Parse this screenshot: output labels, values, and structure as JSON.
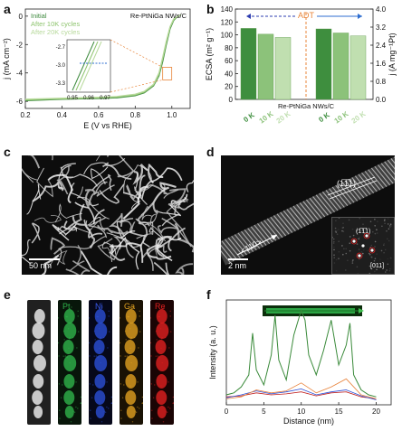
{
  "panels": {
    "a": "a",
    "b": "b",
    "c": "c",
    "d": "d",
    "e": "e",
    "f": "f"
  },
  "panel_a": {
    "legend": [
      "Initial",
      "After 10K cycles",
      "After 20K cycles"
    ],
    "sample": "Re-PtNiGa NWs/C",
    "colors": [
      "#3d8a3d",
      "#8ec46e",
      "#b7d99b"
    ],
    "inset_xticks": [
      "0.95",
      "0.96",
      "0.97"
    ],
    "inset_yticks": [
      "-2.7",
      "-3.0",
      "-3.3"
    ]
  },
  "panel_b": {
    "sample": "Re-PtNiGa NWs/C",
    "adt": "ADT",
    "colors": {
      "bar_dark": "#3e8e3e",
      "bar_mid": "#8cc27a",
      "bar_light": "#c0dfb0",
      "adt": "#e8853a",
      "arrow_left": "#2e3db0",
      "arrow_right": "#2e6ed0"
    }
  },
  "panel_c": {
    "scalebar": "50 nm"
  },
  "panel_d": {
    "plane": "(1̅1̅1)",
    "direction": "<110>",
    "fft_spot": "(1̅1̅1)",
    "zone": "[011]",
    "scalebar": "2 nm"
  },
  "panel_e": {
    "elements": [
      "Pt",
      "Ni",
      "Ga",
      "Re"
    ],
    "element_colors": [
      "#2fb34a",
      "#2b4fd6",
      "#e0a020",
      "#e02020"
    ]
  },
  "panel_f": {
    "series_colors": [
      "#3a8a3a",
      "#e8823a",
      "#2b4fd6",
      "#c02020"
    ]
  },
  "chart_data": [
    {
      "type": "line",
      "panel": "a",
      "xlabel": "E (V vs RHE)",
      "ylabel": "j (mA cm⁻²)",
      "xlim": [
        0.2,
        1.1
      ],
      "ylim": [
        -6.5,
        0.5
      ],
      "xticks": [
        "0.2",
        "0.4",
        "0.6",
        "0.8",
        "1.0"
      ],
      "yticks": [
        "0",
        "-2",
        "-4",
        "-6"
      ],
      "legend_position": "top-left",
      "series": [
        {
          "name": "Initial",
          "x": [
            0.2,
            0.3,
            0.4,
            0.5,
            0.6,
            0.7,
            0.8,
            0.85,
            0.9,
            0.93,
            0.95,
            0.97,
            0.99,
            1.01,
            1.03,
            1.05
          ],
          "y": [
            -5.95,
            -5.9,
            -5.85,
            -5.82,
            -5.8,
            -5.75,
            -5.6,
            -5.4,
            -4.9,
            -4.2,
            -3.2,
            -2.0,
            -0.9,
            -0.3,
            -0.05,
            0.1
          ]
        },
        {
          "name": "After 10K cycles",
          "x": [
            0.2,
            0.3,
            0.4,
            0.5,
            0.6,
            0.7,
            0.8,
            0.85,
            0.9,
            0.93,
            0.95,
            0.97,
            0.99,
            1.01,
            1.03,
            1.05
          ],
          "y": [
            -5.9,
            -5.86,
            -5.82,
            -5.78,
            -5.75,
            -5.7,
            -5.55,
            -5.35,
            -4.85,
            -4.1,
            -3.0,
            -1.85,
            -0.8,
            -0.25,
            -0.05,
            0.1
          ]
        },
        {
          "name": "After 20K cycles",
          "x": [
            0.2,
            0.3,
            0.4,
            0.5,
            0.6,
            0.7,
            0.8,
            0.85,
            0.9,
            0.93,
            0.95,
            0.97,
            0.99,
            1.01,
            1.03,
            1.05
          ],
          "y": [
            -5.85,
            -5.82,
            -5.78,
            -5.75,
            -5.72,
            -5.66,
            -5.5,
            -5.3,
            -4.8,
            -4.0,
            -2.9,
            -1.75,
            -0.75,
            -0.2,
            -0.03,
            0.1
          ]
        }
      ]
    },
    {
      "type": "bar",
      "panel": "b",
      "ylabel": "ECSA (m² g⁻¹)",
      "ylabel_right": "j (A mg⁻¹Pt)",
      "ylim": [
        0,
        140
      ],
      "ylim_right": [
        0,
        4.0
      ],
      "yticks": [
        "0",
        "20",
        "40",
        "60",
        "80",
        "100",
        "120",
        "140"
      ],
      "yticks_right": [
        "0.0",
        "0.8",
        "1.6",
        "2.4",
        "3.2",
        "4.0"
      ],
      "categories": [
        "0 K",
        "10 K",
        "20 K",
        "0 K",
        "10 K",
        "20 K"
      ],
      "groups": [
        {
          "metric": "ECSA",
          "values": [
            110,
            101,
            96
          ]
        },
        {
          "metric": "j",
          "values": [
            3.12,
            2.94,
            2.81
          ]
        }
      ]
    },
    {
      "type": "line",
      "panel": "f",
      "xlabel": "Distance (nm)",
      "ylabel": "Intensity (a. u.)",
      "xlim": [
        0,
        22
      ],
      "xticks": [
        "0",
        "5",
        "10",
        "15",
        "20"
      ],
      "series": [
        {
          "element": "Pt",
          "x": [
            0,
            1,
            2,
            3,
            3.5,
            4,
            5,
            6,
            6.5,
            7,
            8,
            9,
            10,
            10.5,
            11,
            12,
            13,
            14,
            15,
            16,
            16.5,
            17,
            18,
            19,
            20
          ],
          "y": [
            0.1,
            0.12,
            0.18,
            0.3,
            0.72,
            0.35,
            0.2,
            0.5,
            0.9,
            0.45,
            0.25,
            0.7,
            0.95,
            0.85,
            0.5,
            0.3,
            0.55,
            0.85,
            0.4,
            0.6,
            0.82,
            0.3,
            0.15,
            0.1,
            0.08
          ]
        },
        {
          "element": "Ga",
          "x": [
            0,
            2,
            4,
            6,
            8,
            10,
            12,
            14,
            16,
            18,
            20
          ],
          "y": [
            0.06,
            0.08,
            0.15,
            0.12,
            0.14,
            0.22,
            0.12,
            0.18,
            0.26,
            0.1,
            0.06
          ]
        },
        {
          "element": "Ni",
          "x": [
            0,
            2,
            4,
            6,
            8,
            10,
            12,
            14,
            16,
            18,
            20
          ],
          "y": [
            0.07,
            0.1,
            0.14,
            0.11,
            0.13,
            0.16,
            0.1,
            0.13,
            0.15,
            0.09,
            0.05
          ]
        },
        {
          "element": "Re",
          "x": [
            0,
            2,
            4,
            6,
            8,
            10,
            12,
            14,
            16,
            18,
            20
          ],
          "y": [
            0.08,
            0.09,
            0.12,
            0.1,
            0.11,
            0.13,
            0.09,
            0.12,
            0.13,
            0.08,
            0.06
          ]
        }
      ]
    }
  ]
}
